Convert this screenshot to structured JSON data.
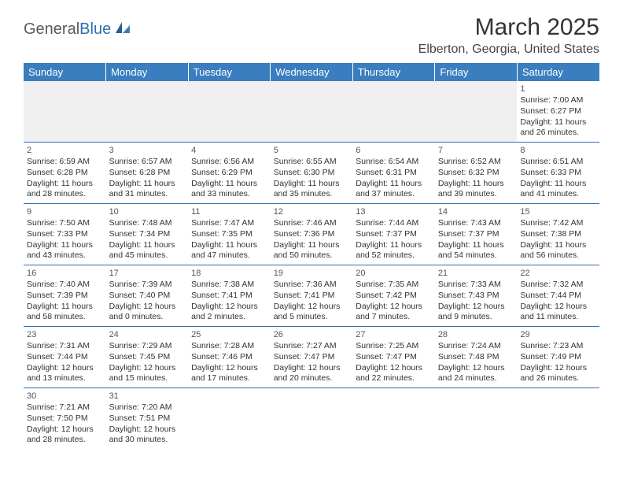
{
  "logo": {
    "word1": "General",
    "word2": "Blue"
  },
  "header": {
    "month_title": "March 2025",
    "location": "Elberton, Georgia, United States"
  },
  "days_of_week": [
    "Sunday",
    "Monday",
    "Tuesday",
    "Wednesday",
    "Thursday",
    "Friday",
    "Saturday"
  ],
  "colors": {
    "header_bg": "#3a7ebf",
    "header_text": "#ffffff",
    "row_border": "#2f6fb0",
    "empty_bg": "#f0f0f0",
    "text": "#333333",
    "logo_gray": "#5a5a5a",
    "logo_blue": "#2f6fb0"
  },
  "weeks": [
    [
      null,
      null,
      null,
      null,
      null,
      null,
      {
        "n": "1",
        "sunrise": "Sunrise: 7:00 AM",
        "sunset": "Sunset: 6:27 PM",
        "day1": "Daylight: 11 hours",
        "day2": "and 26 minutes."
      }
    ],
    [
      {
        "n": "2",
        "sunrise": "Sunrise: 6:59 AM",
        "sunset": "Sunset: 6:28 PM",
        "day1": "Daylight: 11 hours",
        "day2": "and 28 minutes."
      },
      {
        "n": "3",
        "sunrise": "Sunrise: 6:57 AM",
        "sunset": "Sunset: 6:28 PM",
        "day1": "Daylight: 11 hours",
        "day2": "and 31 minutes."
      },
      {
        "n": "4",
        "sunrise": "Sunrise: 6:56 AM",
        "sunset": "Sunset: 6:29 PM",
        "day1": "Daylight: 11 hours",
        "day2": "and 33 minutes."
      },
      {
        "n": "5",
        "sunrise": "Sunrise: 6:55 AM",
        "sunset": "Sunset: 6:30 PM",
        "day1": "Daylight: 11 hours",
        "day2": "and 35 minutes."
      },
      {
        "n": "6",
        "sunrise": "Sunrise: 6:54 AM",
        "sunset": "Sunset: 6:31 PM",
        "day1": "Daylight: 11 hours",
        "day2": "and 37 minutes."
      },
      {
        "n": "7",
        "sunrise": "Sunrise: 6:52 AM",
        "sunset": "Sunset: 6:32 PM",
        "day1": "Daylight: 11 hours",
        "day2": "and 39 minutes."
      },
      {
        "n": "8",
        "sunrise": "Sunrise: 6:51 AM",
        "sunset": "Sunset: 6:33 PM",
        "day1": "Daylight: 11 hours",
        "day2": "and 41 minutes."
      }
    ],
    [
      {
        "n": "9",
        "sunrise": "Sunrise: 7:50 AM",
        "sunset": "Sunset: 7:33 PM",
        "day1": "Daylight: 11 hours",
        "day2": "and 43 minutes."
      },
      {
        "n": "10",
        "sunrise": "Sunrise: 7:48 AM",
        "sunset": "Sunset: 7:34 PM",
        "day1": "Daylight: 11 hours",
        "day2": "and 45 minutes."
      },
      {
        "n": "11",
        "sunrise": "Sunrise: 7:47 AM",
        "sunset": "Sunset: 7:35 PM",
        "day1": "Daylight: 11 hours",
        "day2": "and 47 minutes."
      },
      {
        "n": "12",
        "sunrise": "Sunrise: 7:46 AM",
        "sunset": "Sunset: 7:36 PM",
        "day1": "Daylight: 11 hours",
        "day2": "and 50 minutes."
      },
      {
        "n": "13",
        "sunrise": "Sunrise: 7:44 AM",
        "sunset": "Sunset: 7:37 PM",
        "day1": "Daylight: 11 hours",
        "day2": "and 52 minutes."
      },
      {
        "n": "14",
        "sunrise": "Sunrise: 7:43 AM",
        "sunset": "Sunset: 7:37 PM",
        "day1": "Daylight: 11 hours",
        "day2": "and 54 minutes."
      },
      {
        "n": "15",
        "sunrise": "Sunrise: 7:42 AM",
        "sunset": "Sunset: 7:38 PM",
        "day1": "Daylight: 11 hours",
        "day2": "and 56 minutes."
      }
    ],
    [
      {
        "n": "16",
        "sunrise": "Sunrise: 7:40 AM",
        "sunset": "Sunset: 7:39 PM",
        "day1": "Daylight: 11 hours",
        "day2": "and 58 minutes."
      },
      {
        "n": "17",
        "sunrise": "Sunrise: 7:39 AM",
        "sunset": "Sunset: 7:40 PM",
        "day1": "Daylight: 12 hours",
        "day2": "and 0 minutes."
      },
      {
        "n": "18",
        "sunrise": "Sunrise: 7:38 AM",
        "sunset": "Sunset: 7:41 PM",
        "day1": "Daylight: 12 hours",
        "day2": "and 2 minutes."
      },
      {
        "n": "19",
        "sunrise": "Sunrise: 7:36 AM",
        "sunset": "Sunset: 7:41 PM",
        "day1": "Daylight: 12 hours",
        "day2": "and 5 minutes."
      },
      {
        "n": "20",
        "sunrise": "Sunrise: 7:35 AM",
        "sunset": "Sunset: 7:42 PM",
        "day1": "Daylight: 12 hours",
        "day2": "and 7 minutes."
      },
      {
        "n": "21",
        "sunrise": "Sunrise: 7:33 AM",
        "sunset": "Sunset: 7:43 PM",
        "day1": "Daylight: 12 hours",
        "day2": "and 9 minutes."
      },
      {
        "n": "22",
        "sunrise": "Sunrise: 7:32 AM",
        "sunset": "Sunset: 7:44 PM",
        "day1": "Daylight: 12 hours",
        "day2": "and 11 minutes."
      }
    ],
    [
      {
        "n": "23",
        "sunrise": "Sunrise: 7:31 AM",
        "sunset": "Sunset: 7:44 PM",
        "day1": "Daylight: 12 hours",
        "day2": "and 13 minutes."
      },
      {
        "n": "24",
        "sunrise": "Sunrise: 7:29 AM",
        "sunset": "Sunset: 7:45 PM",
        "day1": "Daylight: 12 hours",
        "day2": "and 15 minutes."
      },
      {
        "n": "25",
        "sunrise": "Sunrise: 7:28 AM",
        "sunset": "Sunset: 7:46 PM",
        "day1": "Daylight: 12 hours",
        "day2": "and 17 minutes."
      },
      {
        "n": "26",
        "sunrise": "Sunrise: 7:27 AM",
        "sunset": "Sunset: 7:47 PM",
        "day1": "Daylight: 12 hours",
        "day2": "and 20 minutes."
      },
      {
        "n": "27",
        "sunrise": "Sunrise: 7:25 AM",
        "sunset": "Sunset: 7:47 PM",
        "day1": "Daylight: 12 hours",
        "day2": "and 22 minutes."
      },
      {
        "n": "28",
        "sunrise": "Sunrise: 7:24 AM",
        "sunset": "Sunset: 7:48 PM",
        "day1": "Daylight: 12 hours",
        "day2": "and 24 minutes."
      },
      {
        "n": "29",
        "sunrise": "Sunrise: 7:23 AM",
        "sunset": "Sunset: 7:49 PM",
        "day1": "Daylight: 12 hours",
        "day2": "and 26 minutes."
      }
    ],
    [
      {
        "n": "30",
        "sunrise": "Sunrise: 7:21 AM",
        "sunset": "Sunset: 7:50 PM",
        "day1": "Daylight: 12 hours",
        "day2": "and 28 minutes."
      },
      {
        "n": "31",
        "sunrise": "Sunrise: 7:20 AM",
        "sunset": "Sunset: 7:51 PM",
        "day1": "Daylight: 12 hours",
        "day2": "and 30 minutes."
      },
      null,
      null,
      null,
      null,
      null
    ]
  ]
}
